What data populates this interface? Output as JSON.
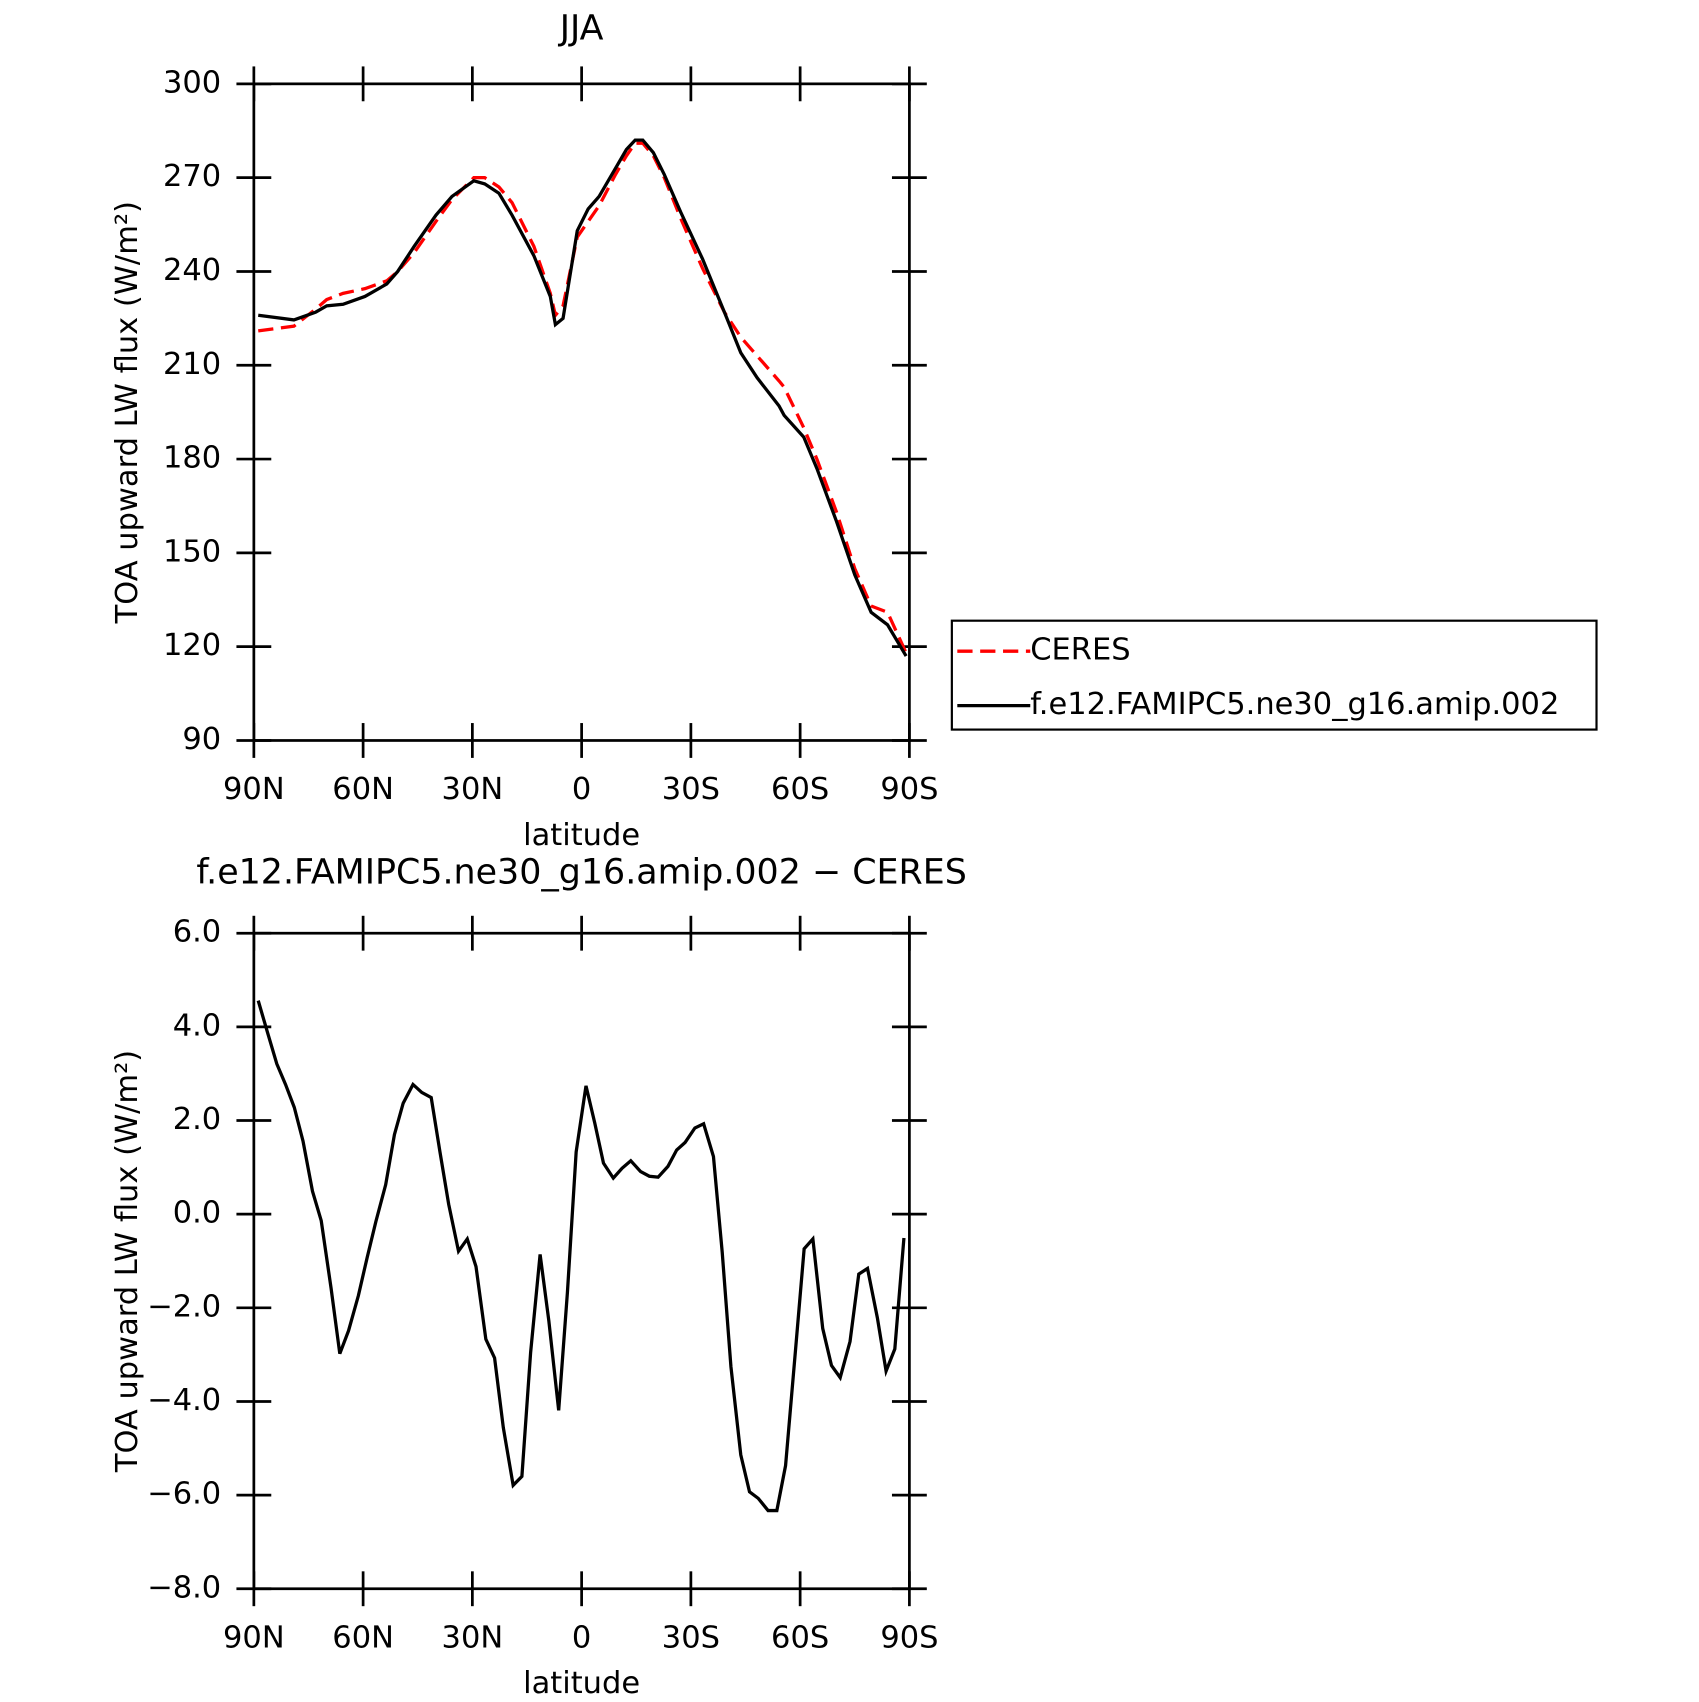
{
  "chart_data": [
    {
      "type": "line",
      "title": "JJA",
      "ylabel": "TOA upward LW flux (W/m²)",
      "xlabel": "latitude",
      "x": [
        88.8,
        79,
        73,
        70,
        65.5,
        59.5,
        53.5,
        50.5,
        46,
        40,
        35.6,
        29.6,
        26.6,
        22.7,
        19.1,
        13.1,
        8.6,
        7.2,
        5.1,
        1.2,
        -1.8,
        -4.8,
        -9.3,
        -12.3,
        -14.7,
        -16.8,
        -19.7,
        -22.7,
        -27.2,
        -33.2,
        -39.2,
        -43.7,
        -48.2,
        -54.2,
        -55.6,
        -61,
        -64.6,
        -70,
        -75,
        -79.5,
        -84,
        -89.1
      ],
      "series": [
        {
          "name": "CERES",
          "color": "#ff0000",
          "linestyle": "dashed",
          "values": [
            221,
            222.5,
            228,
            231,
            233,
            234.5,
            237,
            240,
            246,
            256,
            263,
            270,
            270,
            267,
            262,
            248,
            233,
            226,
            229,
            251,
            256,
            261,
            271,
            277,
            281,
            281,
            277,
            270,
            257,
            241,
            227,
            219,
            213,
            205,
            203,
            190,
            180,
            163,
            145,
            133,
            131,
            118
          ]
        },
        {
          "name": "f.e12.FAMIPC5.ne30_g16.amip.002",
          "color": "#000000",
          "linestyle": "solid",
          "values": [
            226,
            224.5,
            227,
            229,
            229.5,
            232,
            236,
            240,
            248,
            258,
            264,
            269,
            268,
            265,
            258,
            245,
            232,
            223,
            225,
            253,
            260,
            264,
            273,
            279,
            282,
            282,
            278,
            271,
            259,
            244,
            227,
            214,
            206,
            197,
            194,
            187,
            177,
            160,
            143,
            131,
            127,
            117
          ]
        }
      ],
      "xlim": [
        90,
        -90
      ],
      "xticks": [
        {
          "value": 90,
          "label": "90N"
        },
        {
          "value": 60,
          "label": "60N"
        },
        {
          "value": 30,
          "label": "30N"
        },
        0,
        {
          "value": -30,
          "label": "30S"
        },
        {
          "value": -60,
          "label": "60S"
        },
        {
          "value": -90,
          "label": "90S"
        }
      ],
      "ylim": [
        90,
        300
      ],
      "yticks": [
        90,
        120,
        150,
        180,
        210,
        240,
        270,
        300
      ],
      "legend": "right"
    },
    {
      "type": "line",
      "title": "f.e12.FAMIPC5.ne30_g16.amip.002 − CERES",
      "ylabel": "TOA upward LW flux (W/m²)",
      "xlabel": "latitude",
      "x": [
        88.8,
        86.1,
        83.7,
        81.3,
        78.9,
        76.5,
        73.9,
        71.5,
        68.8,
        66.4,
        64.0,
        61.3,
        58.9,
        56.5,
        53.8,
        51.4,
        49.0,
        46.3,
        43.9,
        41.3,
        38.9,
        36.5,
        33.8,
        31.4,
        29.0,
        26.3,
        23.9,
        21.5,
        18.8,
        16.4,
        14.0,
        11.4,
        9.0,
        6.3,
        3.9,
        1.5,
        -1.2,
        -3.6,
        -6.0,
        -8.7,
        -11.1,
        -13.5,
        -16.2,
        -18.6,
        -21.0,
        -23.7,
        -26.1,
        -28.4,
        -31.1,
        -33.5,
        -36.2,
        -38.6,
        -41.0,
        -43.7,
        -46.1,
        -48.5,
        -51.2,
        -53.6,
        -56.0,
        -58.7,
        -61.1,
        -63.5,
        -66.2,
        -68.6,
        -71.0,
        -73.7,
        -76.1,
        -78.5,
        -81.2,
        -83.6,
        -86.0,
        -88.5
      ],
      "series": [
        {
          "name": "f.e12.FAMIPC5.ne30_g16.amip.002 − CERES",
          "color": "#000000",
          "linestyle": "solid",
          "values": [
            4.56,
            3.84,
            3.21,
            2.77,
            2.28,
            1.56,
            0.49,
            -0.14,
            -1.58,
            -2.98,
            -2.49,
            -1.74,
            -0.93,
            -0.16,
            0.63,
            1.7,
            2.37,
            2.77,
            2.6,
            2.49,
            1.33,
            0.21,
            -0.79,
            -0.53,
            -1.12,
            -2.67,
            -3.07,
            -4.56,
            -5.79,
            -5.6,
            -2.95,
            -0.86,
            -2.28,
            -4.19,
            -1.67,
            1.33,
            2.74,
            1.95,
            1.09,
            0.77,
            0.98,
            1.14,
            0.91,
            0.81,
            0.79,
            1.02,
            1.37,
            1.53,
            1.84,
            1.93,
            1.23,
            -0.81,
            -3.26,
            -5.14,
            -5.93,
            -6.07,
            -6.33,
            -6.33,
            -5.37,
            -2.93,
            -0.74,
            -0.53,
            -2.44,
            -3.23,
            -3.49,
            -2.72,
            -1.28,
            -1.16,
            -2.21,
            -3.35,
            -2.88,
            -0.51
          ]
        }
      ],
      "xlim": [
        90,
        -90
      ],
      "xticks": [
        {
          "value": 90,
          "label": "90N"
        },
        {
          "value": 60,
          "label": "60N"
        },
        {
          "value": 30,
          "label": "30N"
        },
        0,
        {
          "value": -30,
          "label": "30S"
        },
        {
          "value": -60,
          "label": "60S"
        },
        {
          "value": -90,
          "label": "90S"
        }
      ],
      "ylim": [
        -8,
        6
      ],
      "yticks": [
        {
          "value": -8,
          "label": "−8.0"
        },
        {
          "value": -6,
          "label": "−6.0"
        },
        {
          "value": -4,
          "label": "−4.0"
        },
        {
          "value": -2,
          "label": "−2.0"
        },
        {
          "value": 0,
          "label": "0.0"
        },
        {
          "value": 2,
          "label": "2.0"
        },
        {
          "value": 4,
          "label": "4.0"
        },
        {
          "value": 6,
          "label": "6.0"
        }
      ]
    }
  ]
}
